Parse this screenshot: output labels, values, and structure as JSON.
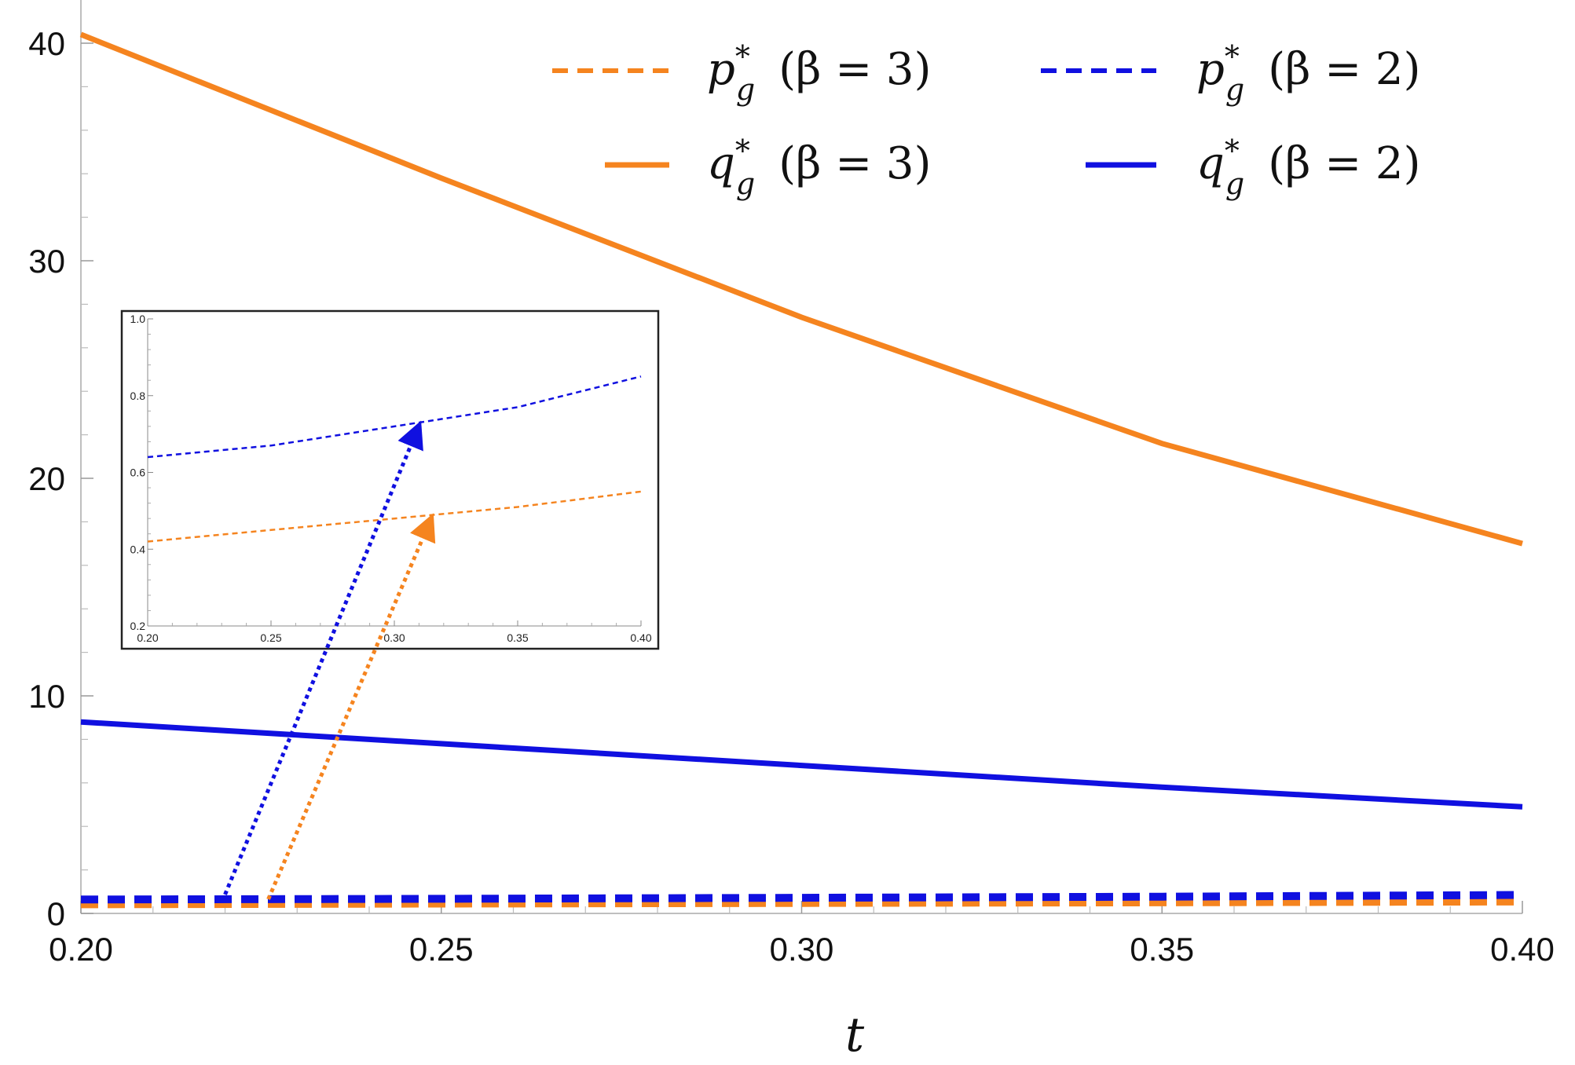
{
  "chart_data": {
    "type": "line",
    "xlabel": "t",
    "ylabel": "",
    "xlim": [
      0.2,
      0.4
    ],
    "ylim": [
      0,
      40
    ],
    "x_ticks": [
      "0.20",
      "0.25",
      "0.30",
      "0.35",
      "0.40"
    ],
    "y_ticks": [
      "0",
      "10",
      "20",
      "30",
      "40"
    ],
    "legend_position": "top-right",
    "legend": [
      {
        "var": "p",
        "sub": "g",
        "sup": "*",
        "paren": "(β = 3)",
        "style": "dashed",
        "color": "#F5841F"
      },
      {
        "var": "p",
        "sub": "g",
        "sup": "*",
        "paren": "(β = 2)",
        "style": "dashed",
        "color": "#1010E0"
      },
      {
        "var": "q",
        "sub": "g",
        "sup": "*",
        "paren": "(β = 3)",
        "style": "solid",
        "color": "#F5841F"
      },
      {
        "var": "q",
        "sub": "g",
        "sup": "*",
        "paren": "(β = 2)",
        "style": "solid",
        "color": "#1010E0"
      }
    ],
    "series": [
      {
        "key": "q3",
        "style": "solid",
        "color": "#F5841F",
        "x": [
          0.2,
          0.25,
          0.3,
          0.35,
          0.4
        ],
        "y": [
          40.4,
          33.8,
          27.4,
          21.6,
          17.0
        ]
      },
      {
        "key": "q2",
        "style": "solid",
        "color": "#1010E0",
        "x": [
          0.2,
          0.25,
          0.3,
          0.35,
          0.4
        ],
        "y": [
          8.8,
          7.8,
          6.8,
          5.8,
          4.9
        ]
      },
      {
        "key": "p3",
        "style": "dashed",
        "color": "#F5841F",
        "x": [
          0.2,
          0.25,
          0.3,
          0.35,
          0.4
        ],
        "y": [
          0.42,
          0.45,
          0.48,
          0.51,
          0.55
        ]
      },
      {
        "key": "p2",
        "style": "dashed",
        "color": "#1010E0",
        "x": [
          0.2,
          0.25,
          0.3,
          0.35,
          0.4
        ],
        "y": [
          0.64,
          0.67,
          0.72,
          0.77,
          0.85
        ]
      }
    ],
    "inset": {
      "xlim": [
        0.2,
        0.4
      ],
      "ylim": [
        0.2,
        1.0
      ],
      "x_ticks": [
        "0.20",
        "0.25",
        "0.30",
        "0.35",
        "0.40"
      ],
      "y_ticks": [
        "0.2",
        "0.4",
        "0.6",
        "0.8",
        "1.0"
      ],
      "series": [
        {
          "key": "p3",
          "style": "dashed",
          "color": "#F5841F",
          "x": [
            0.2,
            0.25,
            0.3,
            0.35,
            0.4
          ],
          "y": [
            0.42,
            0.45,
            0.48,
            0.51,
            0.55
          ]
        },
        {
          "key": "p2",
          "style": "dashed",
          "color": "#1010E0",
          "x": [
            0.2,
            0.25,
            0.3,
            0.35,
            0.4
          ],
          "y": [
            0.64,
            0.67,
            0.72,
            0.77,
            0.85
          ]
        }
      ]
    },
    "annotations": [
      {
        "type": "arrow",
        "style": "dotted",
        "color": "#F5841F",
        "from_series": "p3",
        "from_x": 0.226,
        "to_inset_series": "p3",
        "to_x": 0.315
      },
      {
        "type": "arrow",
        "style": "dotted",
        "color": "#1010E0",
        "from_series": "p2",
        "from_x": 0.22,
        "to_inset_series": "p2",
        "to_x": 0.31
      }
    ]
  }
}
